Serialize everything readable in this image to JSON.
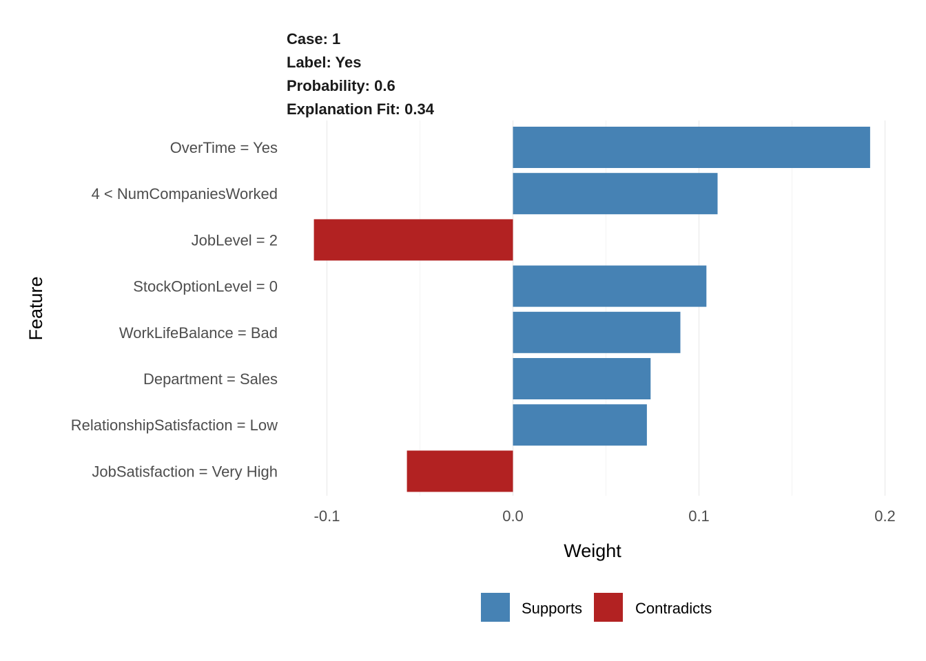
{
  "header": {
    "case_label": "Case: 1",
    "label_label": "Label: Yes",
    "probability_label": "Probability: 0.6",
    "fit_label": "Explanation Fit: 0.34"
  },
  "chart_data": {
    "type": "bar",
    "orientation": "horizontal",
    "xlabel": "Weight",
    "ylabel": "Feature",
    "xlim": [
      -0.11,
      0.2
    ],
    "xticks": [
      -0.1,
      0.0,
      0.1,
      0.2
    ],
    "xtick_labels": [
      "-0.1",
      "0.0",
      "0.1",
      "0.2"
    ],
    "grid": true,
    "legend_position": "bottom",
    "categories": [
      "OverTime = Yes",
      "4 < NumCompaniesWorked",
      "JobLevel = 2",
      "StockOptionLevel = 0",
      "WorkLifeBalance = Bad",
      "Department = Sales",
      "RelationshipSatisfaction = Low",
      "JobSatisfaction = Very High"
    ],
    "values": [
      0.192,
      0.11,
      -0.107,
      0.104,
      0.09,
      0.074,
      0.072,
      -0.057
    ],
    "legend": [
      {
        "name": "Supports",
        "color": "#4682B4"
      },
      {
        "name": "Contradicts",
        "color": "#B22222"
      }
    ]
  }
}
